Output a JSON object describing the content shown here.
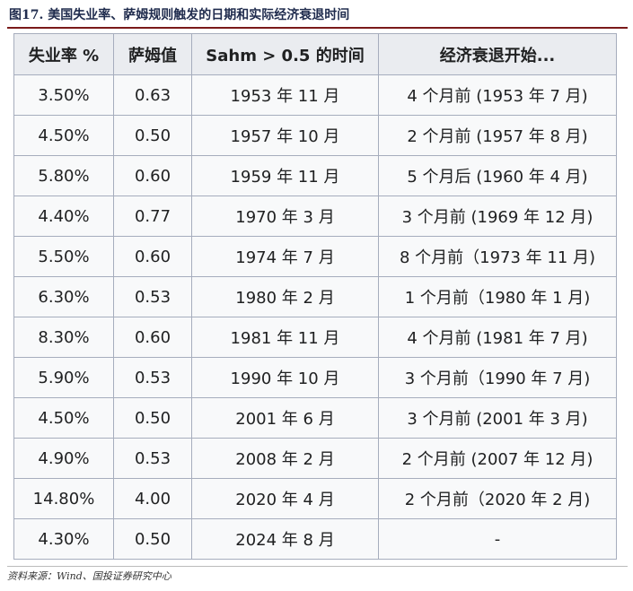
{
  "figure_title": "图17. 美国失业率、萨姆规则触发的日期和实际经济衰退时间",
  "table": {
    "headers": [
      "失业率 %",
      "萨姆值",
      "Sahm > 0.5 的时间",
      "经济衰退开始..."
    ],
    "rows": [
      [
        "3.50%",
        "0.63",
        "1953 年 11 月",
        "4 个月前 (1953 年 7 月)"
      ],
      [
        "4.50%",
        "0.50",
        "1957 年 10 月",
        "2 个月前 (1957 年 8 月)"
      ],
      [
        "5.80%",
        "0.60",
        "1959 年 11 月",
        "5 个月后 (1960 年 4 月)"
      ],
      [
        "4.40%",
        "0.77",
        "1970 年 3 月",
        "3 个月前 (1969 年 12 月)"
      ],
      [
        "5.50%",
        "0.60",
        "1974 年 7 月",
        "8 个月前（1973 年 11 月)"
      ],
      [
        "6.30%",
        "0.53",
        "1980 年 2 月",
        "1 个月前（1980 年 1 月)"
      ],
      [
        "8.30%",
        "0.60",
        "1981 年 11 月",
        "4 个月前 (1981 年 7 月)"
      ],
      [
        "5.90%",
        "0.53",
        "1990 年 10 月",
        "3 个月前（1990 年 7 月)"
      ],
      [
        "4.50%",
        "0.50",
        "2001 年 6 月",
        "3 个月前 (2001 年 3 月)"
      ],
      [
        "4.90%",
        "0.53",
        "2008 年 2 月",
        "2 个月前 (2007 年 12 月)"
      ],
      [
        "14.80%",
        "4.00",
        "2020 年 4 月",
        "2 个月前（2020 年 2 月)"
      ],
      [
        "4.30%",
        "0.50",
        "2024 年 8 月",
        "-"
      ]
    ]
  },
  "source": "资料来源：Wind、国投证券研究中心"
}
